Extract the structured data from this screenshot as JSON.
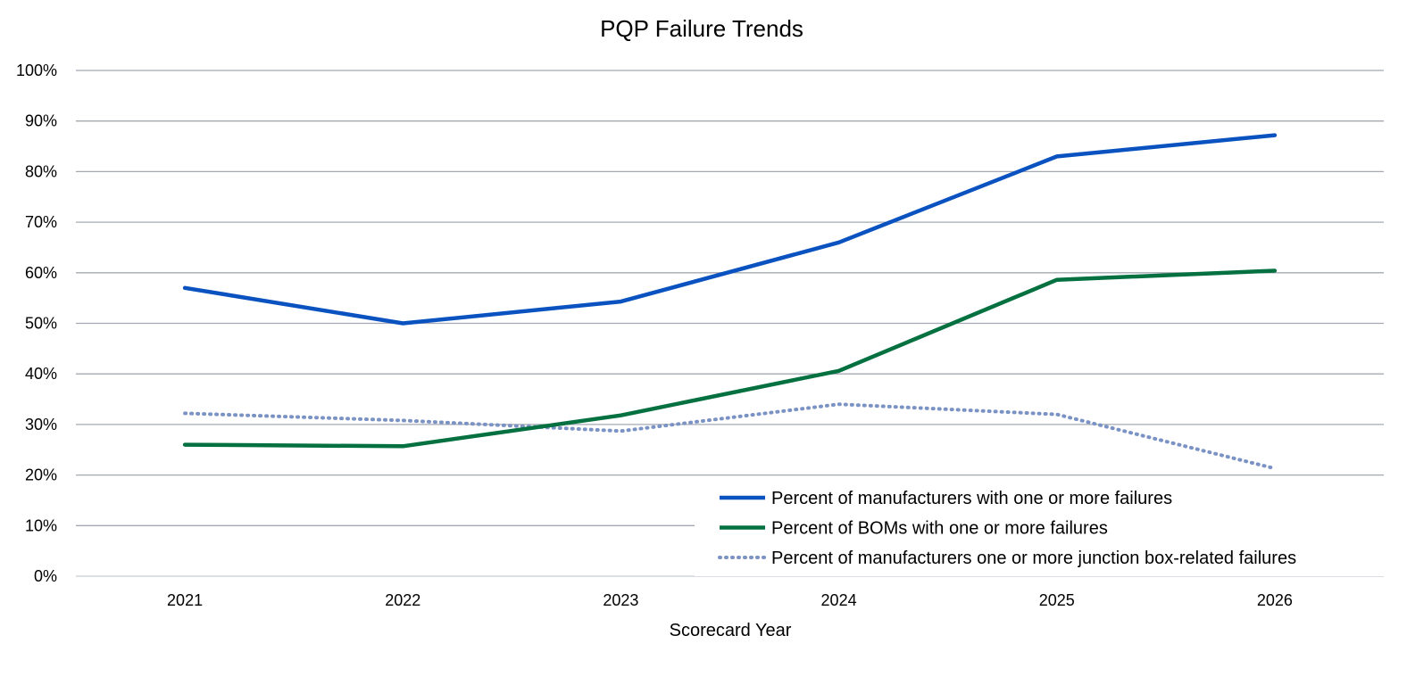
{
  "chart_data": {
    "type": "line",
    "title": "PQP Failure Trends",
    "xlabel": "Scorecard Year",
    "ylabel": "",
    "x": [
      "2021",
      "2022",
      "2023",
      "2024",
      "2025",
      "2026"
    ],
    "y_ticks": [
      "0%",
      "10%",
      "20%",
      "30%",
      "40%",
      "50%",
      "60%",
      "70%",
      "80%",
      "90%",
      "100%"
    ],
    "ylim": [
      0,
      100
    ],
    "y_unit": "%",
    "grid": true,
    "legend_position": "bottom-right",
    "series": [
      {
        "name": "Percent of manufacturers with one or more failures",
        "values": [
          57,
          50,
          54.3,
          66,
          83,
          87.2
        ],
        "color": "#0a52bf",
        "style": "solid"
      },
      {
        "name": "Percent of BOMs with one or more failures",
        "values": [
          26,
          25.7,
          31.8,
          40.6,
          58.6,
          60.4
        ],
        "color": "#057040",
        "style": "solid"
      },
      {
        "name": "Percent of manufacturers one or more junction box-related failures",
        "values": [
          32.2,
          30.8,
          28.7,
          34,
          32,
          21.3
        ],
        "color": "#7a92c4",
        "style": "dotted"
      }
    ]
  }
}
